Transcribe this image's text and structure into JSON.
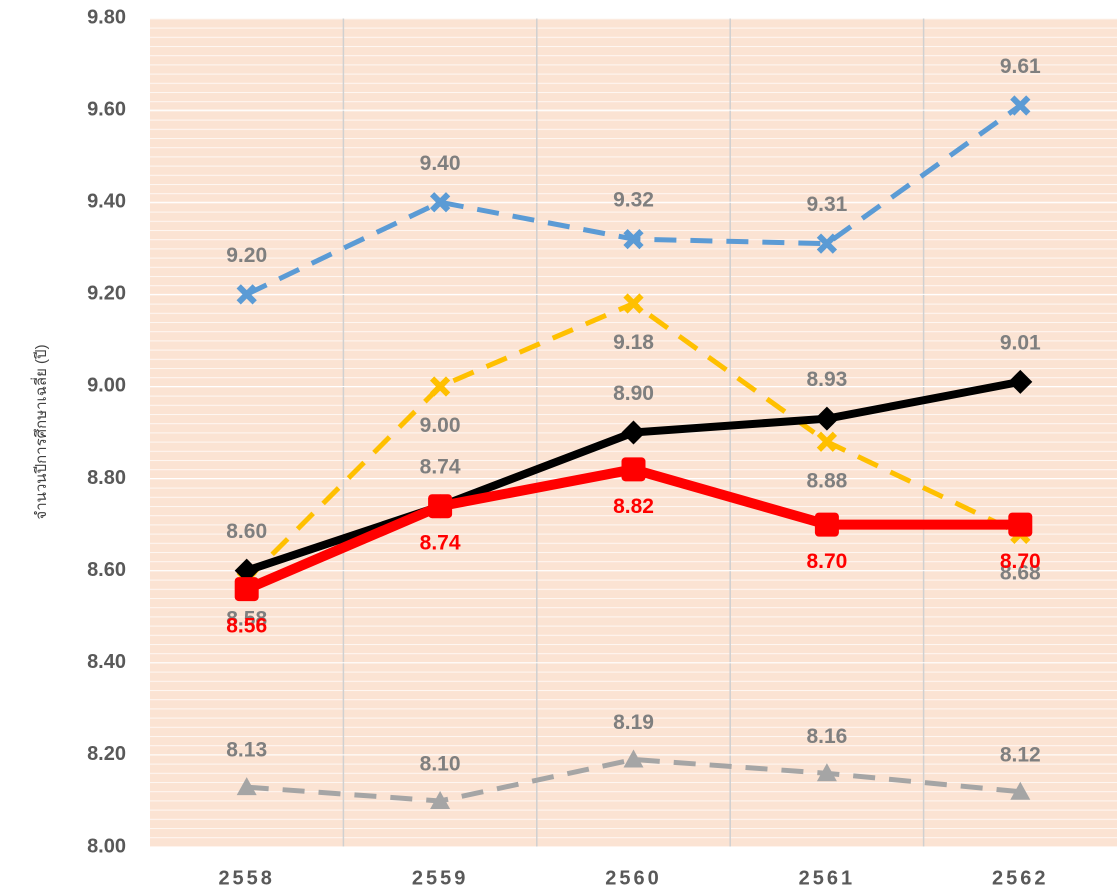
{
  "chart_data": {
    "type": "line",
    "y_label": "จำนวนปีการศึกษาเฉลี่ย (ปี)",
    "categories": [
      "2558",
      "2559",
      "2560",
      "2561",
      "2562"
    ],
    "ylim": [
      8.0,
      9.8
    ],
    "yticks": [
      {
        "value": 8.0,
        "label": "8.00"
      },
      {
        "value": 8.2,
        "label": "8.20"
      },
      {
        "value": 8.4,
        "label": "8.40"
      },
      {
        "value": 8.6,
        "label": "8.60"
      },
      {
        "value": 8.8,
        "label": "8.80"
      },
      {
        "value": 9.0,
        "label": "9.00"
      },
      {
        "value": 9.2,
        "label": "9.20"
      },
      {
        "value": 9.4,
        "label": "9.40"
      },
      {
        "value": 9.6,
        "label": "9.60"
      },
      {
        "value": 9.8,
        "label": "9.80"
      }
    ],
    "background": "#fbe3d3",
    "series": [
      {
        "color": "#5b9bd5",
        "label_color": "#7f7f7f",
        "marker": "x",
        "dashed": true,
        "values": [
          9.2,
          9.4,
          9.32,
          9.31,
          9.61
        ],
        "value_labels": [
          "9.20",
          "9.40",
          "9.32",
          "9.31",
          "9.61"
        ]
      },
      {
        "color": "#ffc000",
        "label_color": "#7f7f7f",
        "marker": "x",
        "dashed": true,
        "values": [
          8.58,
          9.0,
          9.18,
          8.88,
          8.68
        ],
        "value_labels": [
          "8.58",
          "9.00",
          "9.18",
          "8.88",
          "8.68"
        ]
      },
      {
        "color": "#000000",
        "label_color": "#7f7f7f",
        "marker": "diamond",
        "dashed": false,
        "values": [
          8.6,
          8.74,
          8.9,
          8.93,
          9.01
        ],
        "value_labels": [
          "8.60",
          "8.74",
          "8.90",
          "8.93",
          "9.01"
        ]
      },
      {
        "color": "#ff0000",
        "label_color": "#ff0000",
        "marker": "square",
        "dashed": false,
        "values": [
          8.56,
          8.74,
          8.82,
          8.7,
          8.7
        ],
        "value_labels": [
          "8.56",
          "8.74",
          "8.82",
          "8.70",
          "8.70"
        ]
      },
      {
        "color": "#a5a5a5",
        "label_color": "#7f7f7f",
        "marker": "triangle",
        "dashed": true,
        "values": [
          8.13,
          8.1,
          8.19,
          8.16,
          8.12
        ],
        "value_labels": [
          "8.13",
          "8.10",
          "8.19",
          "8.16",
          "8.12"
        ]
      }
    ]
  }
}
